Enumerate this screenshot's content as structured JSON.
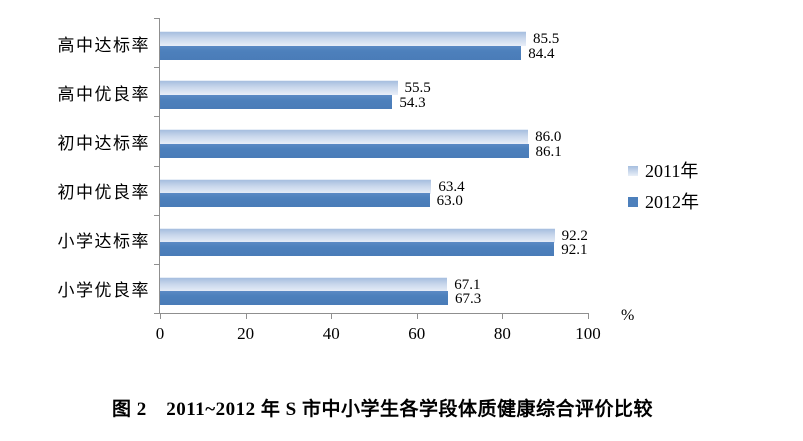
{
  "figure": {
    "caption": "图 2　2011~2012 年 S 市中小学生各学段体质健康综合评价比较"
  },
  "chart_data": {
    "type": "bar",
    "orientation": "horizontal",
    "title": "",
    "categories": [
      "高中达标率",
      "高中优良率",
      "初中达标率",
      "初中优良率",
      "小学达标率",
      "小学优良率"
    ],
    "series": [
      {
        "name": "2011年",
        "values": [
          85.5,
          55.5,
          86.0,
          63.4,
          92.2,
          67.1
        ],
        "labels": [
          "85.5",
          "55.5",
          "86.0",
          "63.4",
          "92.2",
          "67.1"
        ]
      },
      {
        "name": "2012年",
        "values": [
          84.4,
          54.3,
          86.1,
          63.0,
          92.1,
          67.3
        ],
        "labels": [
          "84.4",
          "54.3",
          "86.1",
          "63.0",
          "92.1",
          "67.3"
        ]
      }
    ],
    "xlim": [
      0,
      100
    ],
    "x_ticks": [
      "0",
      "20",
      "40",
      "60",
      "80",
      "100"
    ],
    "x_unit": "%",
    "grid": false,
    "legend_position": "right-middle",
    "data_labels": true
  },
  "colors": {
    "series_2011_top": "#a6bedf",
    "series_2011_bottom": "#e9eff8",
    "series_2012": "#4d80bc",
    "axis": "#8f8f8f",
    "text": "#000000",
    "background": "#ffffff"
  }
}
